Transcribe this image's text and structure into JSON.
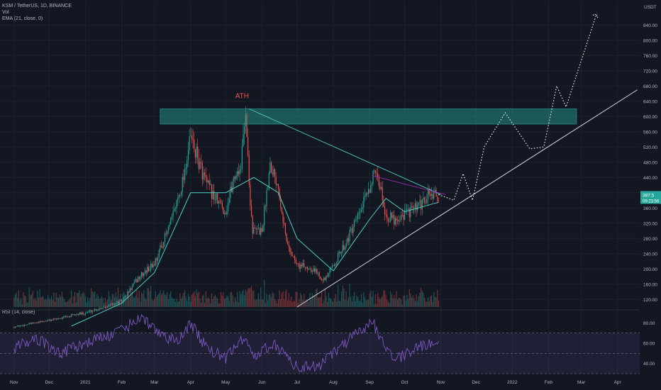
{
  "legend": {
    "symbol": "KSM / TetherUS, 1D, BINANCE",
    "vol": "Vol",
    "ema": "EMA (21, close, 0)",
    "rsi": "RSI (14, close)"
  },
  "currency": "USDT",
  "last_price": "387.5",
  "countdown": "09:23:56",
  "colors": {
    "up": "#26a69a",
    "down": "#ef5350",
    "ema": "#4dd0c4",
    "rsi": "#7e57c2",
    "zone": "#1f6f66",
    "trend": "#d1d4dc",
    "background": "#131722"
  },
  "chart_data": [
    {
      "type": "candlestick",
      "title": "",
      "annotations": [
        {
          "text": "ATH",
          "color": "#ef5350"
        }
      ],
      "y_ticks": [
        120,
        160,
        200,
        240,
        280,
        320,
        360,
        400,
        440,
        480,
        520,
        560,
        600,
        640,
        680,
        720,
        760,
        800,
        840
      ],
      "ylim": [
        100,
        900
      ],
      "x_ticks": [
        "Nov",
        "Dec",
        "2021",
        "Feb",
        "Mar",
        "Apr",
        "May",
        "Jun",
        "Jul",
        "Aug",
        "Sep",
        "Oct",
        "Nov",
        "Dec",
        "2022",
        "Feb",
        "Mar",
        "Apr"
      ],
      "close_path": [
        {
          "date": "2020-11-01",
          "close": 48
        },
        {
          "date": "2020-12-01",
          "close": 65
        },
        {
          "date": "2021-01-01",
          "close": 85
        },
        {
          "date": "2021-02-01",
          "close": 115
        },
        {
          "date": "2021-02-15",
          "close": 175
        },
        {
          "date": "2021-03-01",
          "close": 215
        },
        {
          "date": "2021-03-15",
          "close": 320
        },
        {
          "date": "2021-03-25",
          "close": 430
        },
        {
          "date": "2021-04-01",
          "close": 545
        },
        {
          "date": "2021-04-08",
          "close": 480
        },
        {
          "date": "2021-04-15",
          "close": 420
        },
        {
          "date": "2021-04-22",
          "close": 385
        },
        {
          "date": "2021-05-01",
          "close": 350
        },
        {
          "date": "2021-05-08",
          "close": 440
        },
        {
          "date": "2021-05-14",
          "close": 470
        },
        {
          "date": "2021-05-18",
          "close": 622
        },
        {
          "date": "2021-05-21",
          "close": 420
        },
        {
          "date": "2021-05-24",
          "close": 300
        },
        {
          "date": "2021-06-01",
          "close": 300
        },
        {
          "date": "2021-06-08",
          "close": 480
        },
        {
          "date": "2021-06-15",
          "close": 420
        },
        {
          "date": "2021-06-22",
          "close": 270
        },
        {
          "date": "2021-07-01",
          "close": 210
        },
        {
          "date": "2021-07-15",
          "close": 200
        },
        {
          "date": "2021-07-25",
          "close": 170
        },
        {
          "date": "2021-08-01",
          "close": 210
        },
        {
          "date": "2021-08-10",
          "close": 260
        },
        {
          "date": "2021-08-20",
          "close": 320
        },
        {
          "date": "2021-08-28",
          "close": 380
        },
        {
          "date": "2021-09-04",
          "close": 445
        },
        {
          "date": "2021-09-10",
          "close": 420
        },
        {
          "date": "2021-09-15",
          "close": 340
        },
        {
          "date": "2021-09-22",
          "close": 330
        },
        {
          "date": "2021-10-01",
          "close": 345
        },
        {
          "date": "2021-10-15",
          "close": 365
        },
        {
          "date": "2021-10-22",
          "close": 400
        },
        {
          "date": "2021-10-30",
          "close": 387
        }
      ],
      "ema_21": [
        {
          "date": "2020-12-20",
          "value": 50
        },
        {
          "date": "2021-02-01",
          "value": 110
        },
        {
          "date": "2021-03-01",
          "value": 190
        },
        {
          "date": "2021-04-01",
          "value": 400
        },
        {
          "date": "2021-05-01",
          "value": 400
        },
        {
          "date": "2021-05-25",
          "value": 440
        },
        {
          "date": "2021-06-15",
          "value": 400
        },
        {
          "date": "2021-07-01",
          "value": 280
        },
        {
          "date": "2021-08-01",
          "value": 195
        },
        {
          "date": "2021-09-01",
          "value": 330
        },
        {
          "date": "2021-09-15",
          "value": 385
        },
        {
          "date": "2021-10-01",
          "value": 350
        },
        {
          "date": "2021-10-30",
          "value": 375
        }
      ],
      "ath_zone": {
        "y_low": 580,
        "y_high": 620,
        "x_start": "2021-03-06",
        "x_end": "2022-02-25"
      },
      "drawings": [
        {
          "type": "falling-trendline",
          "points": [
            {
              "date": "2021-05-21",
              "value": 620
            },
            {
              "date": "2021-11-01",
              "value": 395
            }
          ]
        },
        {
          "type": "rising-trendline",
          "points": [
            {
              "date": "2021-07-01",
              "value": 100
            },
            {
              "date": "2022-04-18",
              "value": 670
            }
          ]
        },
        {
          "type": "projection",
          "points": [
            {
              "date": "2021-10-30",
              "value": 395
            },
            {
              "date": "2021-11-12",
              "value": 380
            },
            {
              "date": "2021-11-20",
              "value": 450
            },
            {
              "date": "2021-11-28",
              "value": 380
            },
            {
              "date": "2021-12-08",
              "value": 520
            },
            {
              "date": "2021-12-26",
              "value": 610
            },
            {
              "date": "2022-01-16",
              "value": 515
            },
            {
              "date": "2022-01-28",
              "value": 520
            },
            {
              "date": "2022-02-08",
              "value": 680
            },
            {
              "date": "2022-02-16",
              "value": 625
            },
            {
              "date": "2022-03-14",
              "value": 868
            }
          ]
        }
      ]
    },
    {
      "type": "line",
      "title": "",
      "y_ticks": [
        40,
        60,
        80
      ],
      "ylim": [
        30,
        90
      ],
      "bands": [
        30,
        50,
        70
      ],
      "rsi": [
        {
          "date": "2020-11-01",
          "value": 55
        },
        {
          "date": "2020-11-20",
          "value": 65
        },
        {
          "date": "2020-12-10",
          "value": 50
        },
        {
          "date": "2021-01-01",
          "value": 60
        },
        {
          "date": "2021-02-01",
          "value": 72
        },
        {
          "date": "2021-02-15",
          "value": 85
        },
        {
          "date": "2021-03-01",
          "value": 75
        },
        {
          "date": "2021-03-20",
          "value": 60
        },
        {
          "date": "2021-04-01",
          "value": 80
        },
        {
          "date": "2021-04-15",
          "value": 55
        },
        {
          "date": "2021-05-01",
          "value": 45
        },
        {
          "date": "2021-05-18",
          "value": 68
        },
        {
          "date": "2021-05-25",
          "value": 45
        },
        {
          "date": "2021-06-10",
          "value": 60
        },
        {
          "date": "2021-06-25",
          "value": 45
        },
        {
          "date": "2021-07-01",
          "value": 35
        },
        {
          "date": "2021-07-20",
          "value": 38
        },
        {
          "date": "2021-08-01",
          "value": 50
        },
        {
          "date": "2021-08-20",
          "value": 68
        },
        {
          "date": "2021-09-04",
          "value": 80
        },
        {
          "date": "2021-09-15",
          "value": 55
        },
        {
          "date": "2021-09-25",
          "value": 45
        },
        {
          "date": "2021-10-05",
          "value": 52
        },
        {
          "date": "2021-10-20",
          "value": 60
        },
        {
          "date": "2021-10-30",
          "value": 57
        }
      ]
    }
  ]
}
